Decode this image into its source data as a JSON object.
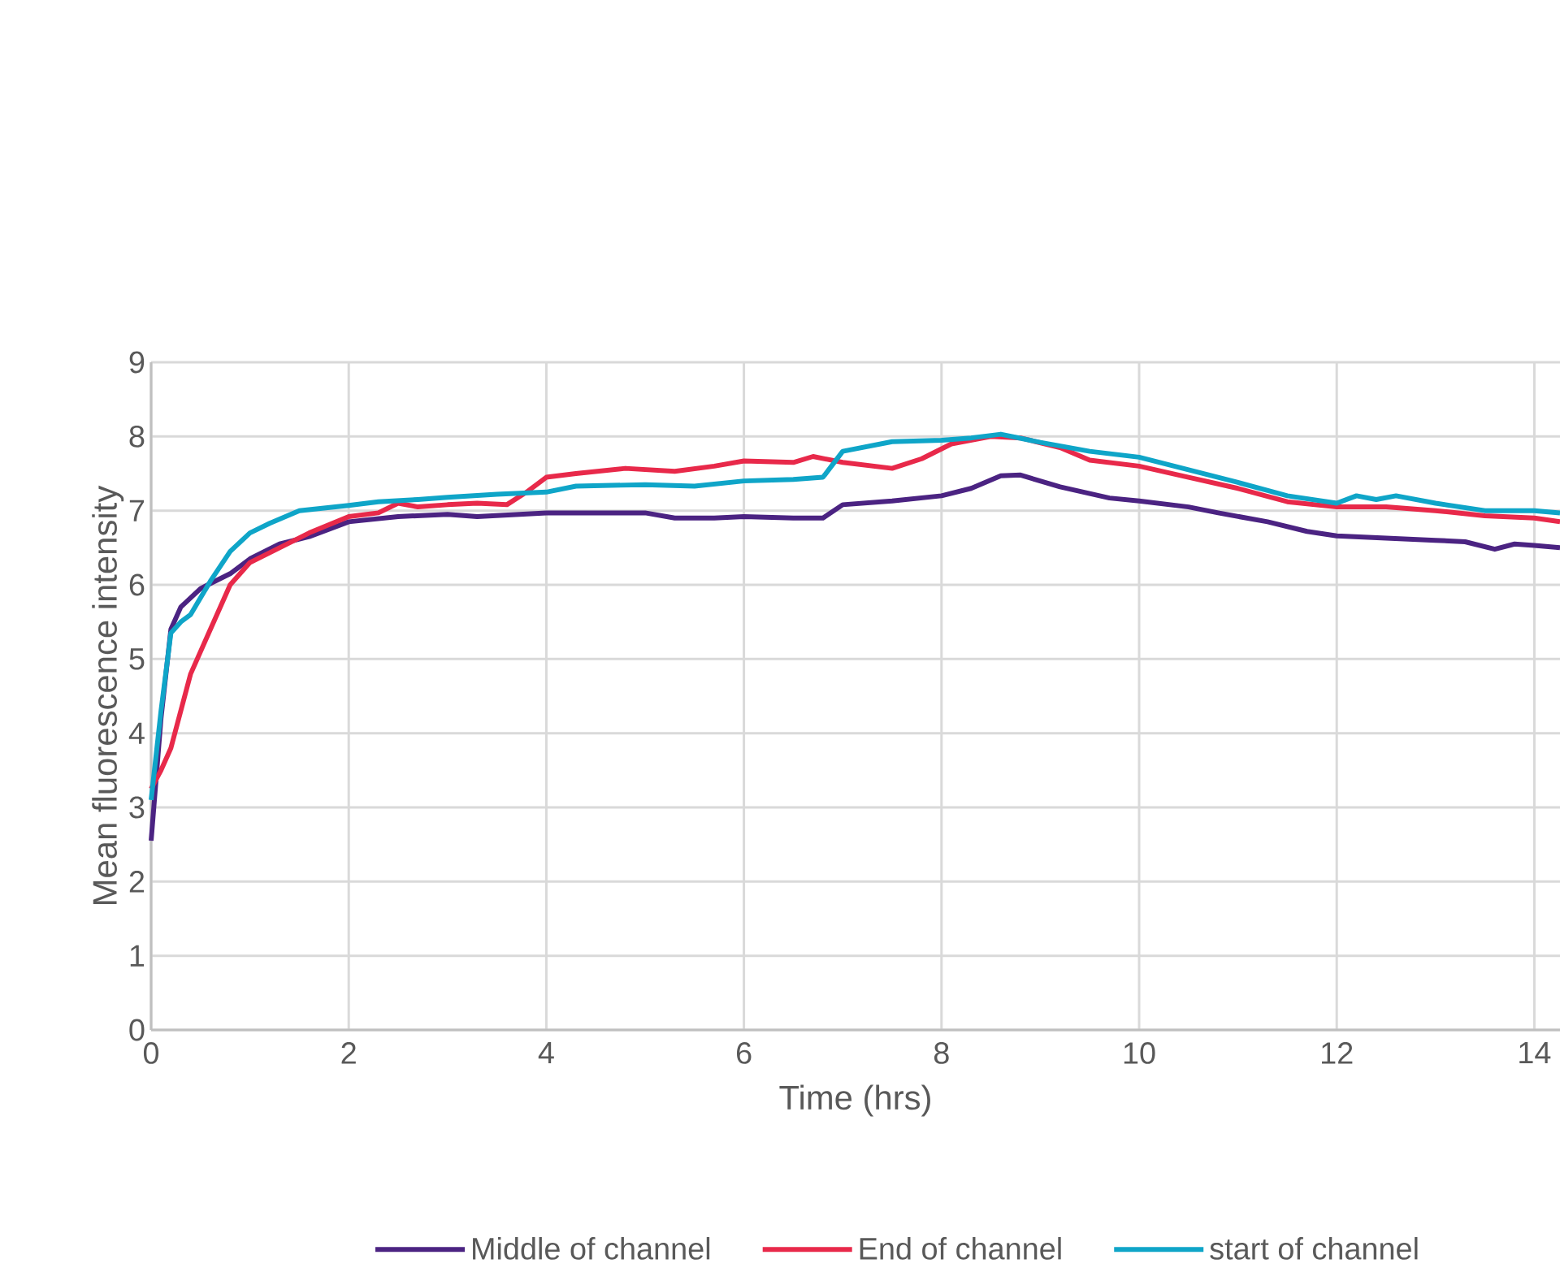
{
  "chart_data": {
    "type": "line",
    "xlabel": "Time (hrs)",
    "ylabel": "Mean fluorescence intensity",
    "xlim": [
      0,
      14.26
    ],
    "xticks": [
      0,
      2,
      4,
      6,
      8,
      10,
      12,
      14
    ],
    "ylim": [
      0,
      9
    ],
    "yticks": [
      0,
      1,
      2,
      3,
      4,
      5,
      6,
      7,
      8,
      9
    ],
    "grid": true,
    "legend": "bottom",
    "line_style": "solid",
    "series": [
      {
        "name": "Middle of channel",
        "color": "#4b2382",
        "x": [
          0,
          0.1,
          0.2,
          0.3,
          0.5,
          0.8,
          1,
          1.3,
          1.6,
          2,
          2.5,
          3,
          3.3,
          4,
          4.5,
          5,
          5.3,
          5.7,
          6,
          6.5,
          6.8,
          7,
          7.5,
          8,
          8.3,
          8.6,
          8.8,
          9.2,
          9.7,
          10,
          10.5,
          10.8,
          11.3,
          11.7,
          12,
          12.5,
          13,
          13.3,
          13.6,
          13.8,
          14,
          14.26
        ],
        "values": [
          2.55,
          4.2,
          5.4,
          5.7,
          5.95,
          6.15,
          6.35,
          6.55,
          6.65,
          6.85,
          6.92,
          6.95,
          6.92,
          6.97,
          6.97,
          6.97,
          6.9,
          6.9,
          6.92,
          6.9,
          6.9,
          7.08,
          7.13,
          7.2,
          7.3,
          7.47,
          7.48,
          7.32,
          7.17,
          7.13,
          7.05,
          6.97,
          6.85,
          6.72,
          6.66,
          6.63,
          6.6,
          6.58,
          6.48,
          6.55,
          6.53,
          6.5
        ]
      },
      {
        "name": "End of channel",
        "color": "#e8294a",
        "x": [
          0,
          0.1,
          0.2,
          0.4,
          0.6,
          0.8,
          1,
          1.3,
          1.6,
          2,
          2.3,
          2.5,
          2.7,
          3,
          3.3,
          3.6,
          3.8,
          4,
          4.3,
          4.8,
          5.3,
          5.7,
          6,
          6.5,
          6.7,
          7,
          7.5,
          7.8,
          8.1,
          8.5,
          8.8,
          9.2,
          9.5,
          10,
          10.5,
          11,
          11.5,
          12,
          12.5,
          13,
          13.5,
          14,
          14.26
        ],
        "values": [
          3.25,
          3.5,
          3.8,
          4.8,
          5.4,
          6.0,
          6.3,
          6.5,
          6.7,
          6.92,
          6.97,
          7.1,
          7.05,
          7.08,
          7.1,
          7.08,
          7.25,
          7.45,
          7.5,
          7.57,
          7.53,
          7.6,
          7.67,
          7.65,
          7.73,
          7.65,
          7.57,
          7.7,
          7.9,
          8.0,
          7.98,
          7.85,
          7.68,
          7.6,
          7.45,
          7.3,
          7.12,
          7.05,
          7.05,
          7.0,
          6.93,
          6.9,
          6.85
        ]
      },
      {
        "name": "start of channel",
        "color": "#0fa5c8",
        "x": [
          0,
          0.1,
          0.2,
          0.3,
          0.4,
          0.6,
          0.8,
          1,
          1.2,
          1.5,
          2,
          2.3,
          2.7,
          3,
          3.5,
          4,
          4.3,
          5,
          5.5,
          6,
          6.5,
          6.8,
          7,
          7.5,
          8,
          8.3,
          8.6,
          9,
          9.5,
          10,
          10.5,
          11,
          11.5,
          12,
          12.2,
          12.4,
          12.6,
          13,
          13.5,
          14,
          14.26
        ],
        "values": [
          3.1,
          4.3,
          5.35,
          5.5,
          5.6,
          6.05,
          6.45,
          6.7,
          6.83,
          7.0,
          7.07,
          7.12,
          7.15,
          7.18,
          7.22,
          7.25,
          7.33,
          7.35,
          7.33,
          7.4,
          7.42,
          7.45,
          7.8,
          7.93,
          7.95,
          7.98,
          8.03,
          7.92,
          7.8,
          7.72,
          7.55,
          7.38,
          7.2,
          7.1,
          7.2,
          7.15,
          7.2,
          7.1,
          7.0,
          7.0,
          6.97
        ]
      }
    ]
  }
}
